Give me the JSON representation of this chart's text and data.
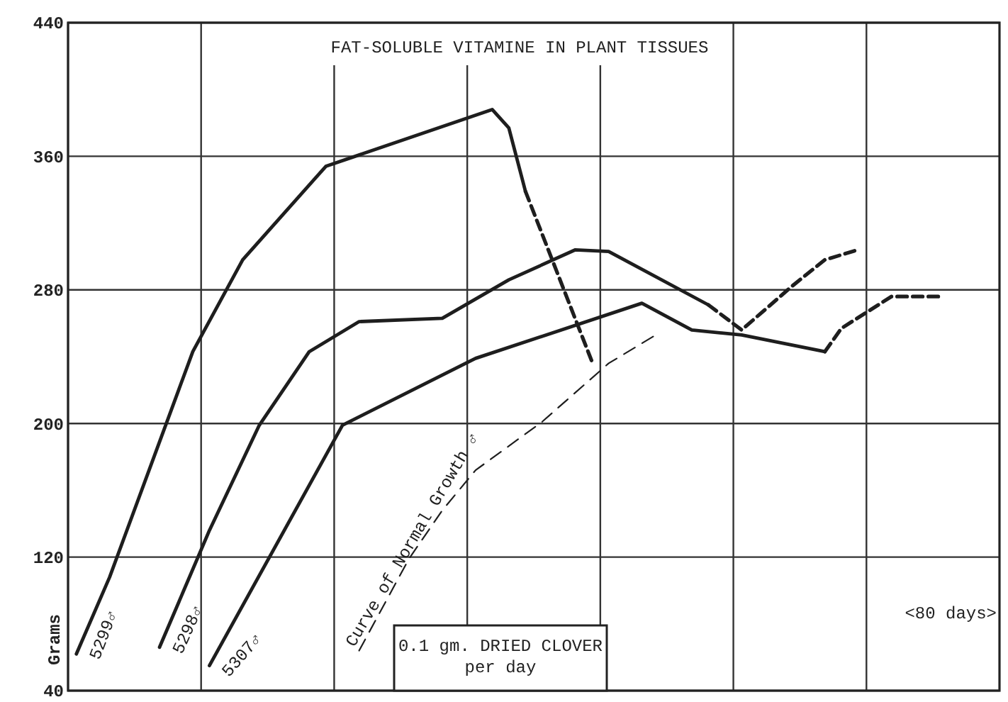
{
  "chart_data": {
    "type": "line",
    "title": "FAT-SOLUBLE VITAMINE IN PLANT TISSUES",
    "ylabel": "Grams",
    "categories": [
      null,
      null,
      null,
      null,
      null,
      null,
      null,
      null,
      null,
      null,
      null,
      null,
      null,
      null,
      null,
      null,
      null,
      null,
      null,
      null,
      null,
      null,
      null,
      null,
      null,
      null,
      null,
      null,
      null,
      null,
      null,
      null,
      null,
      null,
      null,
      null,
      null,
      null,
      null,
      null,
      null,
      null,
      null,
      null,
      null,
      null,
      null,
      null,
      null,
      null,
      null,
      null,
      null,
      null,
      null,
      null
    ],
    "ylim": [
      40,
      440
    ],
    "yticks": [
      40,
      120,
      200,
      280,
      360,
      440
    ],
    "grid": true,
    "tick_labels": "y",
    "series": [
      {
        "name": "5299♂",
        "color": "#1e1e1e",
        "line_style": "solid",
        "values": [
          62,
          null,
          108,
          null,
          null,
          null,
          null,
          243,
          null,
          null,
          298,
          null,
          null,
          null,
          null,
          354,
          null,
          null,
          null,
          null,
          null,
          null,
          null,
          null,
          null,
          388,
          377,
          339,
          null,
          null,
          null,
          null,
          null,
          null,
          null,
          null,
          null,
          null,
          null,
          null,
          null,
          null,
          null,
          null,
          null,
          null,
          null,
          null,
          null,
          null,
          null,
          null,
          null,
          null,
          null,
          null
        ]
      },
      {
        "color": "#1e1e1e",
        "line_style": "dashed",
        "values": [
          null,
          null,
          null,
          null,
          null,
          null,
          null,
          null,
          null,
          null,
          null,
          null,
          null,
          null,
          null,
          null,
          null,
          null,
          null,
          null,
          null,
          null,
          null,
          null,
          null,
          null,
          null,
          339,
          null,
          null,
          null,
          237,
          null,
          null,
          null,
          null,
          null,
          null,
          null,
          null,
          null,
          null,
          null,
          null,
          null,
          null,
          null,
          null,
          null,
          null,
          null,
          null,
          null,
          null,
          null,
          null
        ]
      },
      {
        "name": "5298♂",
        "color": "#1e1e1e",
        "line_style": "solid",
        "values": [
          null,
          null,
          null,
          null,
          null,
          66,
          null,
          null,
          136,
          null,
          null,
          199,
          null,
          null,
          243,
          null,
          null,
          261,
          null,
          null,
          null,
          null,
          263,
          null,
          null,
          null,
          286,
          null,
          null,
          null,
          304,
          null,
          303,
          null,
          null,
          null,
          null,
          null,
          271,
          null,
          null,
          null,
          null,
          null,
          null,
          null,
          null,
          null,
          null,
          null,
          null,
          null,
          null,
          null,
          null,
          null
        ]
      },
      {
        "color": "#1e1e1e",
        "line_style": "dashed",
        "values": [
          null,
          null,
          null,
          null,
          null,
          null,
          null,
          null,
          null,
          null,
          null,
          null,
          null,
          null,
          null,
          null,
          null,
          null,
          null,
          null,
          null,
          null,
          null,
          null,
          null,
          null,
          null,
          null,
          null,
          null,
          null,
          null,
          null,
          null,
          null,
          null,
          null,
          null,
          271,
          null,
          256,
          null,
          null,
          282,
          null,
          298,
          null,
          304,
          null,
          null,
          null,
          null,
          null,
          null,
          null,
          null
        ]
      },
      {
        "name": "5307♂",
        "color": "#1e1e1e",
        "line_style": "solid",
        "values": [
          null,
          null,
          null,
          null,
          null,
          null,
          null,
          null,
          55,
          null,
          null,
          null,
          null,
          null,
          null,
          null,
          199,
          null,
          null,
          null,
          null,
          null,
          null,
          null,
          239,
          null,
          null,
          null,
          null,
          null,
          null,
          null,
          null,
          null,
          272,
          null,
          null,
          256,
          null,
          null,
          253,
          null,
          null,
          null,
          null,
          243,
          null,
          null,
          null,
          null,
          null,
          null,
          null,
          null,
          null,
          null
        ]
      },
      {
        "color": "#1e1e1e",
        "line_style": "dashed",
        "values": [
          null,
          null,
          null,
          null,
          null,
          null,
          null,
          null,
          null,
          null,
          null,
          null,
          null,
          null,
          null,
          null,
          null,
          null,
          null,
          null,
          null,
          null,
          null,
          null,
          null,
          null,
          null,
          null,
          null,
          null,
          null,
          null,
          null,
          null,
          null,
          null,
          null,
          null,
          null,
          null,
          null,
          null,
          null,
          null,
          null,
          243,
          257,
          null,
          null,
          276,
          null,
          null,
          276,
          null,
          null,
          null
        ]
      },
      {
        "name": "Curve of Normal Growth ♂",
        "color": "#1e1e1e",
        "line_style": "dotted",
        "values": [
          null,
          null,
          null,
          null,
          null,
          null,
          null,
          null,
          null,
          null,
          null,
          null,
          null,
          null,
          null,
          null,
          null,
          64,
          null,
          null,
          119,
          null,
          148,
          null,
          172,
          null,
          null,
          null,
          201,
          null,
          null,
          null,
          236,
          null,
          null,
          254,
          null,
          null,
          null,
          null,
          null,
          null,
          null,
          null,
          null,
          null,
          null,
          null,
          null,
          null,
          null,
          null,
          null,
          null,
          null,
          null
        ]
      }
    ],
    "annotations": [
      "0.1 gm. DRIED CLOVER\nper day",
      "<80 days>"
    ]
  }
}
